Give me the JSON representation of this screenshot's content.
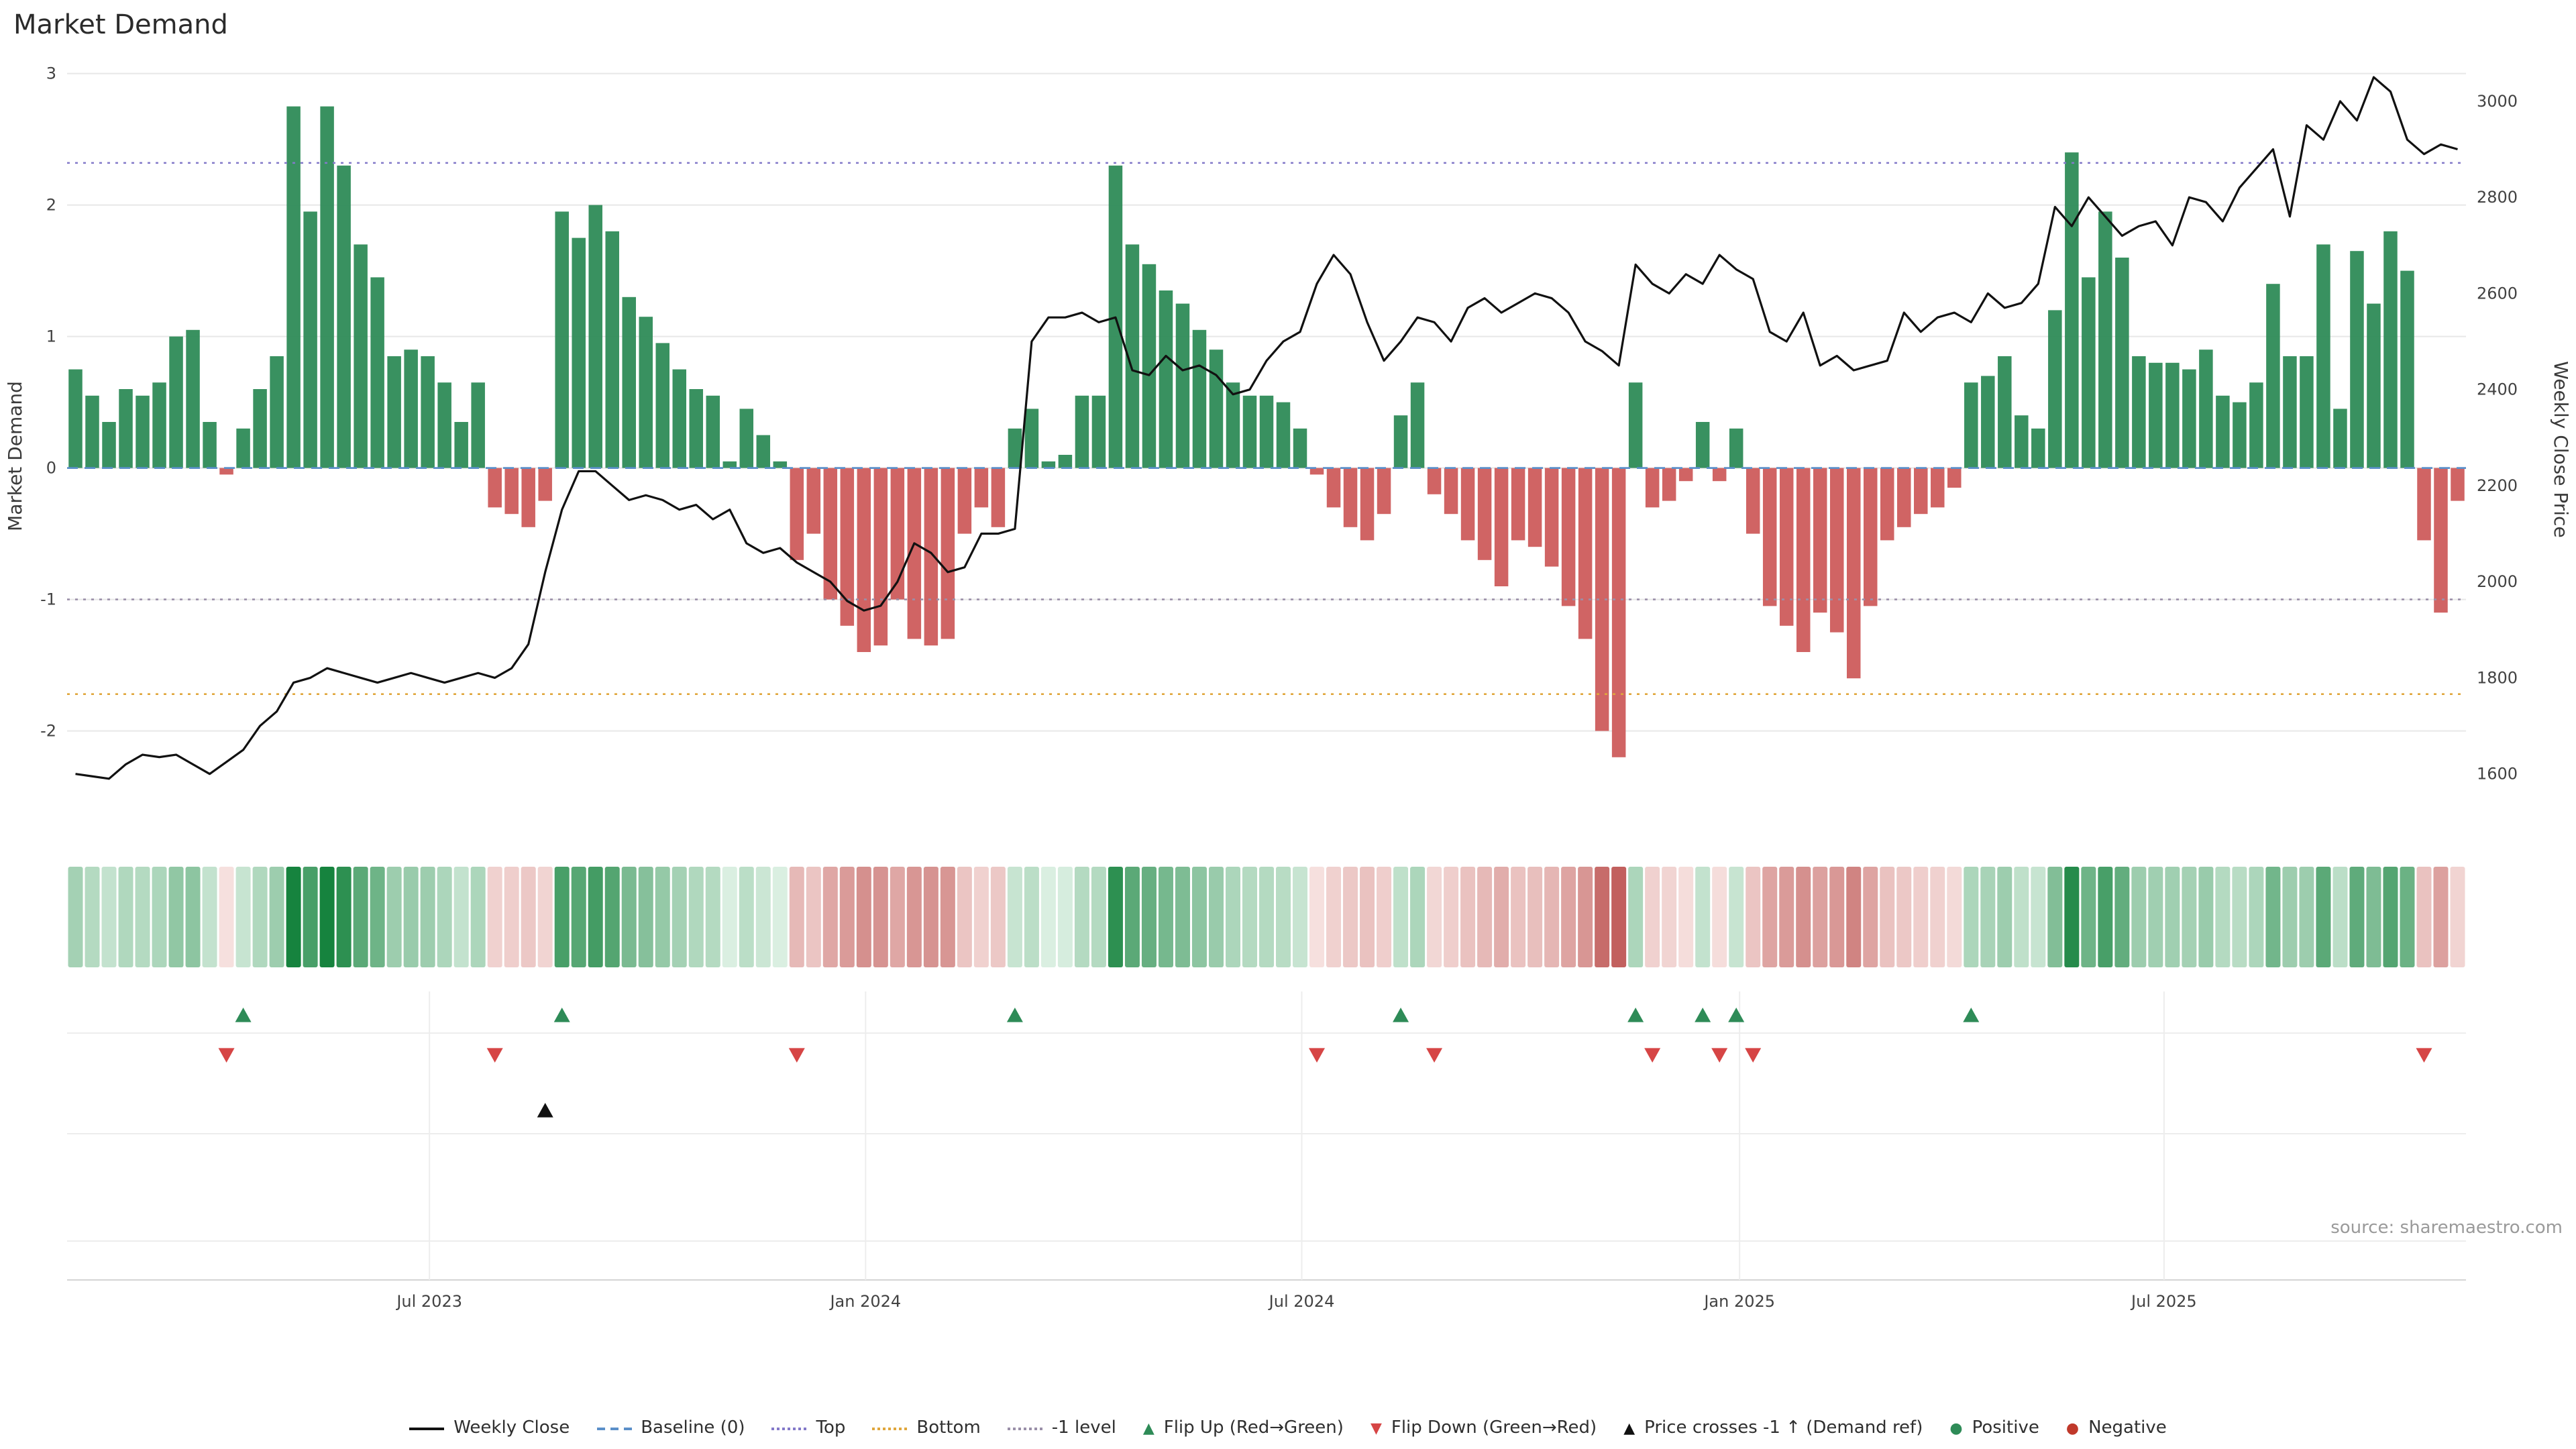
{
  "title": "Market Demand",
  "source": "source: sharemaestro.com",
  "axes": {
    "left_label": "Market Demand",
    "right_label": "Weekly Close Price",
    "left_ticks": [
      3,
      2,
      1,
      0,
      -1,
      -2
    ],
    "right_ticks": [
      3000,
      2800,
      2600,
      2400,
      2200,
      2000,
      1800,
      1600
    ],
    "x_ticks": [
      "Jul 2023",
      "Jan 2024",
      "Jul 2024",
      "Jan 2025",
      "Jul 2025"
    ]
  },
  "colors": {
    "positive": "#2e8b57",
    "negative": "#cd5c5c",
    "price_line": "#111111",
    "baseline": "#5b8fc9",
    "top_line": "#8379c9",
    "bottom_line": "#e0a63c",
    "minus1_line": "#9a8fa8",
    "flip_up": "#2e8b57",
    "flip_down": "#d64545",
    "price_cross": "#111111",
    "grid": "#e8e8e8"
  },
  "chart_data": {
    "type": "bar+line dual-axis with heatmap strip and event markers",
    "x_unit": "weeks (Feb 2023 - Oct 2025)",
    "x_tick_weeks": [
      21.6,
      47.6,
      73.6,
      99.7,
      125.0
    ],
    "left_ylim": [
      -2.4,
      3.1
    ],
    "right_ylim": [
      1580,
      3085
    ],
    "baseline": 0,
    "top": 2.32,
    "bottom": -1.72,
    "minus1": -1.0,
    "demand": [
      0.75,
      0.55,
      0.35,
      0.6,
      0.55,
      0.65,
      1.0,
      1.05,
      0.35,
      -0.05,
      0.3,
      0.6,
      0.85,
      2.75,
      1.95,
      2.75,
      2.3,
      1.7,
      1.45,
      0.85,
      0.9,
      0.85,
      0.65,
      0.35,
      0.65,
      -0.3,
      -0.35,
      -0.45,
      -0.25,
      1.95,
      1.75,
      2.0,
      1.8,
      1.3,
      1.15,
      0.95,
      0.75,
      0.6,
      0.55,
      0.05,
      0.45,
      0.25,
      0.05,
      -0.7,
      -0.5,
      -1.0,
      -1.2,
      -1.4,
      -1.35,
      -1.0,
      -1.3,
      -1.35,
      -1.3,
      -0.5,
      -0.3,
      -0.45,
      0.3,
      0.45,
      0.05,
      0.1,
      0.55,
      0.55,
      2.3,
      1.7,
      1.55,
      1.35,
      1.25,
      1.05,
      0.9,
      0.65,
      0.55,
      0.55,
      0.5,
      0.3,
      -0.05,
      -0.3,
      -0.45,
      -0.55,
      -0.35,
      0.4,
      0.65,
      -0.2,
      -0.35,
      -0.55,
      -0.7,
      -0.9,
      -0.55,
      -0.6,
      -0.75,
      -1.05,
      -1.3,
      -2.0,
      -2.2,
      0.65,
      -0.3,
      -0.25,
      -0.1,
      0.35,
      -0.1,
      0.3,
      -0.5,
      -1.05,
      -1.2,
      -1.4,
      -1.1,
      -1.25,
      -1.6,
      -1.05,
      -0.55,
      -0.45,
      -0.35,
      -0.3,
      -0.15,
      0.65,
      0.7,
      0.85,
      0.4,
      0.3,
      1.2,
      2.4,
      1.45,
      1.95,
      1.6,
      0.85,
      0.8,
      0.8,
      0.75,
      0.9,
      0.55,
      0.5,
      0.65,
      1.4,
      0.85,
      0.85,
      1.7,
      0.45,
      1.65,
      1.25,
      1.8,
      1.5,
      -0.55,
      -1.1,
      -0.25
    ],
    "price": [
      1600,
      1595,
      1590,
      1620,
      1640,
      1635,
      1640,
      1620,
      1600,
      1625,
      1650,
      1700,
      1730,
      1790,
      1800,
      1820,
      1810,
      1800,
      1790,
      1800,
      1810,
      1800,
      1790,
      1800,
      1810,
      1800,
      1820,
      1870,
      2020,
      2150,
      2230,
      2230,
      2200,
      2170,
      2180,
      2170,
      2150,
      2160,
      2130,
      2150,
      2080,
      2060,
      2070,
      2040,
      2020,
      2000,
      1960,
      1940,
      1950,
      2000,
      2080,
      2060,
      2020,
      2030,
      2100,
      2100,
      2110,
      2500,
      2550,
      2550,
      2560,
      2540,
      2550,
      2440,
      2430,
      2470,
      2440,
      2450,
      2430,
      2390,
      2400,
      2460,
      2500,
      2520,
      2620,
      2680,
      2640,
      2540,
      2460,
      2500,
      2550,
      2540,
      2500,
      2570,
      2590,
      2560,
      2580,
      2600,
      2590,
      2560,
      2500,
      2480,
      2450,
      2660,
      2620,
      2600,
      2640,
      2620,
      2680,
      2650,
      2630,
      2520,
      2500,
      2560,
      2450,
      2470,
      2440,
      2450,
      2460,
      2560,
      2520,
      2550,
      2560,
      2540,
      2600,
      2570,
      2580,
      2620,
      2780,
      2740,
      2800,
      2760,
      2720,
      2740,
      2750,
      2700,
      2800,
      2790,
      2750,
      2820,
      2860,
      2900,
      2760,
      2950,
      2920,
      3000,
      2960,
      3050,
      3020,
      2920,
      2890,
      2910,
      2900
    ],
    "flip_up_weeks": [
      10,
      29,
      56,
      79,
      93,
      97,
      99,
      113
    ],
    "flip_down_weeks": [
      9,
      25,
      43,
      74,
      81,
      94,
      98,
      100,
      140
    ],
    "price_cross_weeks": [
      28
    ]
  },
  "legend": {
    "items": [
      {
        "label": "Weekly Close",
        "type": "line",
        "color": "#111111",
        "icon": "line-swatch"
      },
      {
        "label": "Baseline (0)",
        "type": "dashed",
        "color": "#5b8fc9",
        "icon": "dashed-line-swatch"
      },
      {
        "label": "Top",
        "type": "dotted",
        "color": "#8379c9",
        "icon": "dotted-line-swatch"
      },
      {
        "label": "Bottom",
        "type": "dotted",
        "color": "#e0a63c",
        "icon": "dotted-line-swatch"
      },
      {
        "label": "-1 level",
        "type": "dotted",
        "color": "#9a8fa8",
        "icon": "dotted-line-swatch"
      },
      {
        "label": "Flip Up (Red→Green)",
        "type": "tri-up",
        "color": "#2e8b57",
        "icon": "triangle-up-icon"
      },
      {
        "label": "Flip Down (Green→Red)",
        "type": "tri-down",
        "color": "#d64545",
        "icon": "triangle-down-icon"
      },
      {
        "label": "Price crosses -1 ↑ (Demand ref)",
        "type": "tri-up",
        "color": "#111111",
        "icon": "triangle-up-icon"
      },
      {
        "label": "Positive",
        "type": "dot",
        "color": "#2e8b57",
        "icon": "dot-icon"
      },
      {
        "label": "Negative",
        "type": "dot",
        "color": "#c0392b",
        "icon": "dot-icon"
      }
    ]
  }
}
